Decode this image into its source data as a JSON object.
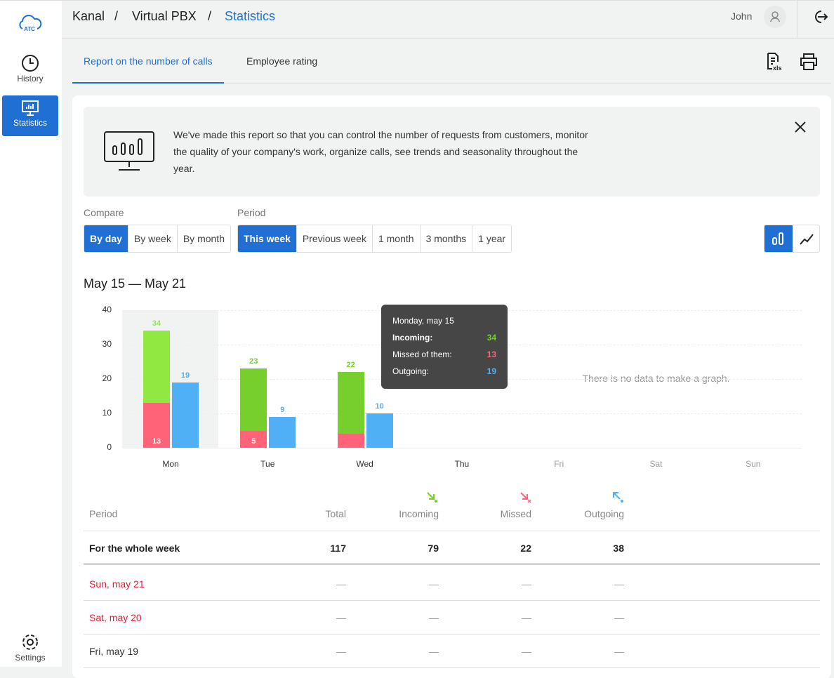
{
  "sidebar": {
    "logo": "ATC",
    "items": [
      {
        "label": "History",
        "icon": "clock-icon"
      },
      {
        "label": "Statistics",
        "icon": "monitor-chart-icon"
      }
    ],
    "settings": "Settings"
  },
  "header": {
    "breadcrumb": [
      "Kanal",
      "Virtual PBX",
      "Statistics"
    ],
    "separator": "/",
    "user": "John"
  },
  "tabs": [
    "Report on the number of calls",
    "Employee rating"
  ],
  "info": {
    "text": "We've made this report so that you can control the number of requests from customers, monitor the quality of your company's work, organize calls, see trends and seasonality throughout the year."
  },
  "compare": {
    "label": "Compare",
    "options": [
      "By day",
      "By week",
      "By month"
    ],
    "selected": "By day"
  },
  "period": {
    "label": "Period",
    "options": [
      "This week",
      "Previous week",
      "1 month",
      "3 months",
      "1 year"
    ],
    "selected": "This week"
  },
  "range_title": "May 15 — May 21",
  "colors": {
    "incoming": "#76cf2c",
    "incoming_hover": "#90e840",
    "missed": "#ff6377",
    "outgoing": "#4fb0f5",
    "accent": "#1f6fd4"
  },
  "chart_data": {
    "type": "bar",
    "categories": [
      "Mon",
      "Tue",
      "Wed",
      "Thu",
      "Fri",
      "Sat",
      "Sun"
    ],
    "series": [
      {
        "name": "Incoming",
        "values": [
          34,
          23,
          22,
          null,
          null,
          null,
          null
        ]
      },
      {
        "name": "Missed",
        "values": [
          13,
          5,
          4,
          null,
          null,
          null,
          null
        ]
      },
      {
        "name": "Outgoing",
        "values": [
          19,
          9,
          10,
          null,
          null,
          null,
          null
        ]
      }
    ],
    "yticks": [
      "0",
      "10",
      "20",
      "30",
      "40"
    ],
    "ylim": [
      0,
      40
    ],
    "no_data": "There is no data to make a graph."
  },
  "tooltip": {
    "title": "Monday, may 15",
    "rows": [
      {
        "label": "Incoming:",
        "value": "34"
      },
      {
        "label": "Missed of them:",
        "value": "13"
      },
      {
        "label": "Outgoing:",
        "value": "19"
      }
    ]
  },
  "table": {
    "headers": [
      "Period",
      "Total",
      "Incoming",
      "Missed",
      "Outgoing"
    ],
    "summary": [
      "For the whole week",
      "117",
      "79",
      "22",
      "38"
    ],
    "rows": [
      [
        "Sun, may 21",
        "—",
        "—",
        "—",
        "—"
      ],
      [
        "Sat, may 20",
        "—",
        "—",
        "—",
        "—"
      ],
      [
        "Fri, may 19",
        "—",
        "—",
        "—",
        "—"
      ]
    ]
  }
}
